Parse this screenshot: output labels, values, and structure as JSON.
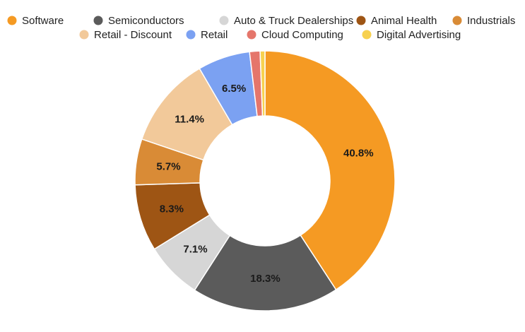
{
  "chart_data": {
    "type": "pie",
    "donut": true,
    "title": "",
    "legend_position": "top",
    "categories": [
      "Software",
      "Semiconductors",
      "Auto & Truck Dealerships",
      "Animal Health",
      "Industrials",
      "Retail - Discount",
      "Retail",
      "Cloud Computing",
      "Digital Advertising"
    ],
    "values": [
      40.8,
      18.3,
      7.1,
      8.3,
      5.7,
      11.4,
      6.5,
      1.3,
      0.6
    ],
    "slice_order": [
      "Software",
      "Semiconductors",
      "Auto & Truck Dealerships",
      "Animal Health",
      "Industrials",
      "Retail - Discount",
      "Retail",
      "Cloud Computing",
      "Digital Advertising"
    ],
    "data_labels": [
      "40.8%",
      "18.3%",
      "7.1%",
      "8.3%",
      "5.7%",
      "11.4%",
      "6.5%",
      "",
      ""
    ],
    "colors": {
      "Software": "#F59A23",
      "Semiconductors": "#5B5B5B",
      "Auto & Truck Dealerships": "#D6D6D6",
      "Animal Health": "#9E5514",
      "Industrials": "#D98B36",
      "Retail - Discount": "#F2C99A",
      "Retail": "#7BA1F2",
      "Cloud Computing": "#E5766B",
      "Digital Advertising": "#F7D14F"
    }
  }
}
